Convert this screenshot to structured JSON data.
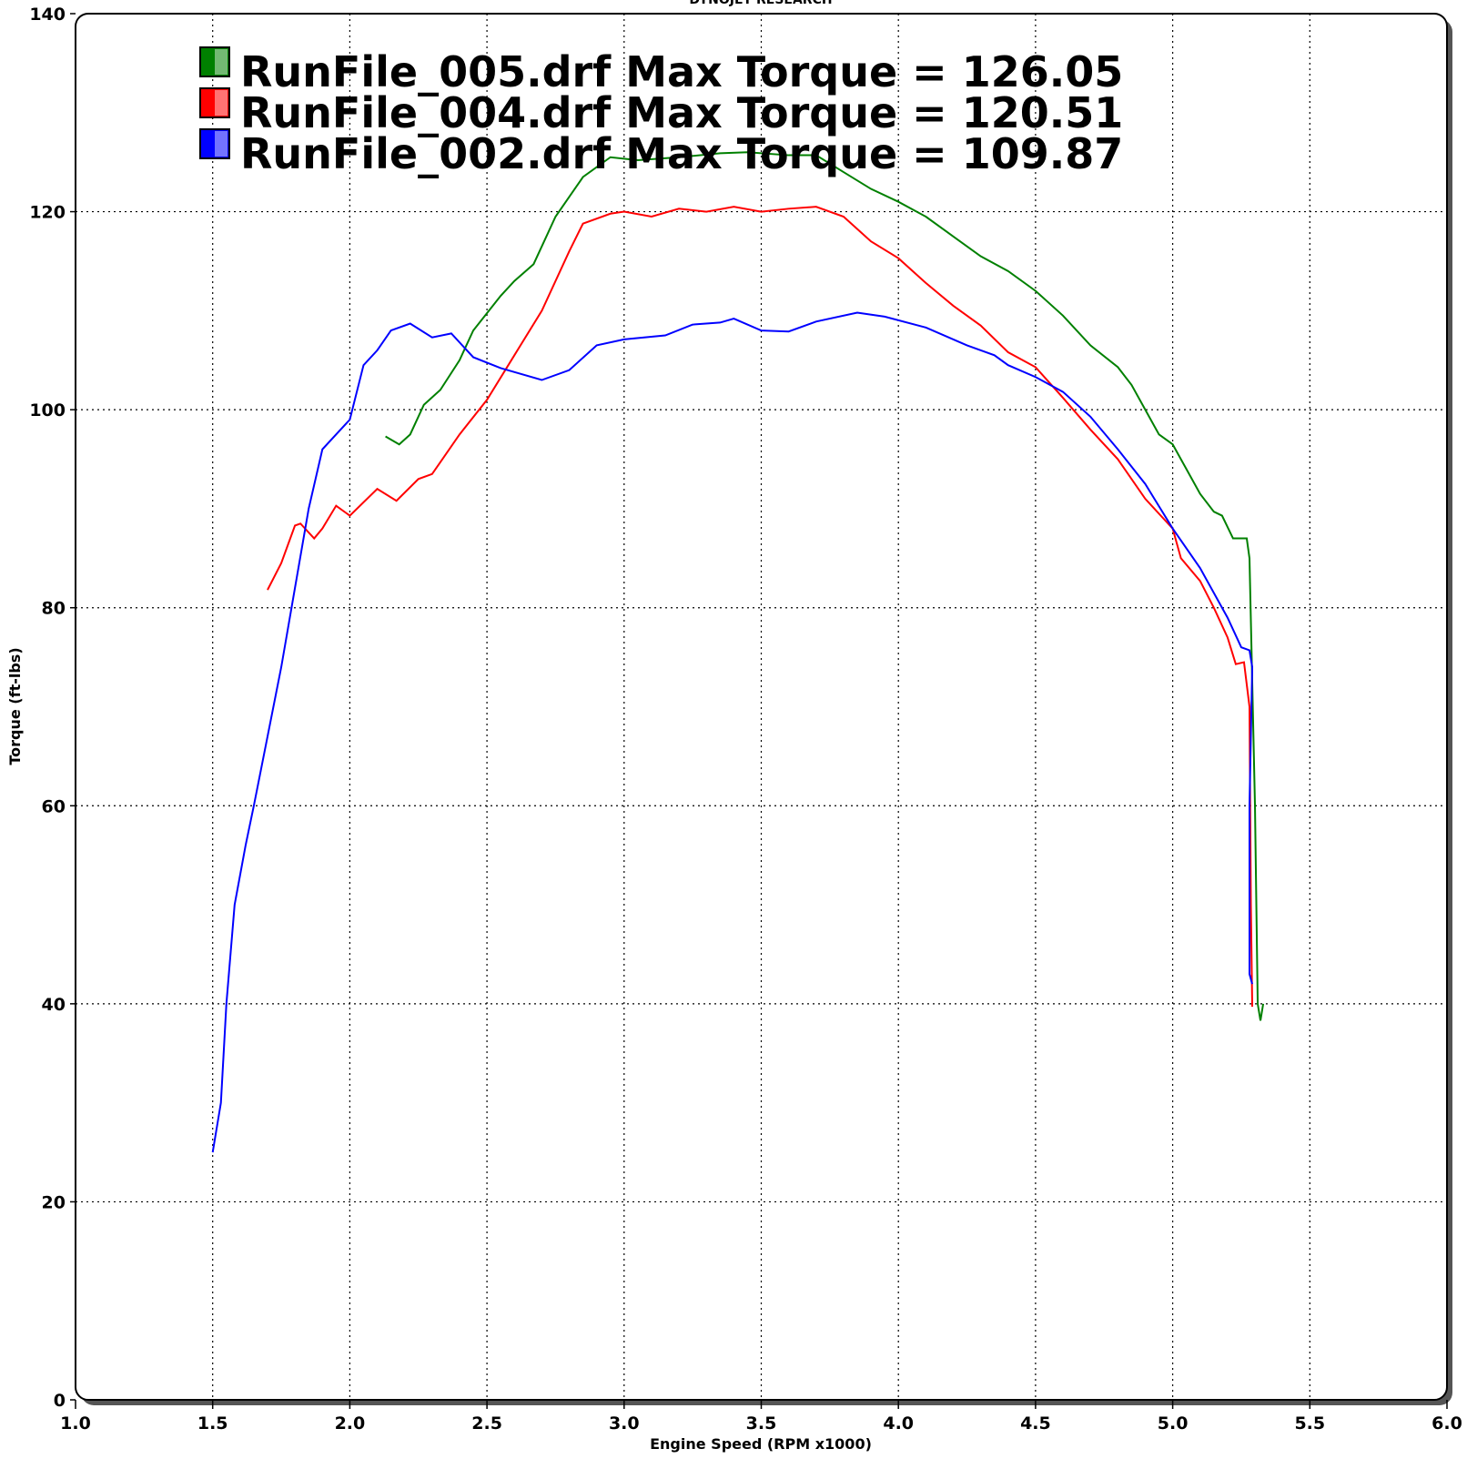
{
  "chart_data": {
    "type": "line",
    "title": "DYNOJET RESEARCH",
    "x_label": "Engine Speed (RPM x1000)",
    "y_label": "Torque (ft-lbs)",
    "xlim": [
      1,
      6
    ],
    "ylim": [
      0,
      140
    ],
    "xticks": [
      {
        "value": 1,
        "label": "1.0"
      },
      1.5,
      {
        "value": 2,
        "label": "2.0"
      },
      2.5,
      {
        "value": 3,
        "label": "3.0"
      },
      3.5,
      {
        "value": 4,
        "label": "4.0"
      },
      4.5,
      {
        "value": 5,
        "label": "5.0"
      },
      5.5,
      {
        "value": 6,
        "label": "6.0"
      }
    ],
    "yticks": [
      0,
      20,
      40,
      60,
      80,
      100,
      120,
      140
    ],
    "grid": true,
    "legend": "top-left",
    "series": [
      {
        "name": "RunFile_005.drf Max Torque = 126.05",
        "color": "#008000",
        "x": [
          2.13,
          2.18,
          2.22,
          2.27,
          2.33,
          2.4,
          2.45,
          2.55,
          2.6,
          2.67,
          2.75,
          2.85,
          2.95,
          3.05,
          3.2,
          3.35,
          3.45,
          3.6,
          3.7,
          3.8,
          3.9,
          4.0,
          4.1,
          4.2,
          4.3,
          4.4,
          4.5,
          4.6,
          4.7,
          4.8,
          4.85,
          4.9,
          4.95,
          5.0,
          5.05,
          5.1,
          5.15,
          5.18,
          5.22,
          5.25,
          5.27,
          5.28,
          5.3,
          5.31,
          5.32,
          5.33
        ],
        "values": [
          97.3,
          96.5,
          97.5,
          100.5,
          102,
          105,
          108,
          111.5,
          113,
          114.7,
          119.5,
          123.5,
          125.5,
          125.2,
          125.5,
          125.9,
          126,
          125.7,
          125.7,
          124,
          122.3,
          121,
          119.5,
          117.5,
          115.5,
          114,
          112,
          109.5,
          106.5,
          104.3,
          102.5,
          100,
          97.5,
          96.5,
          94,
          91.5,
          89.7,
          89.3,
          87,
          87,
          87,
          85,
          60,
          40,
          38.3,
          40
        ]
      },
      {
        "name": "RunFile_004.drf Max Torque = 120.51",
        "color": "#ff0000",
        "x": [
          1.7,
          1.75,
          1.8,
          1.82,
          1.87,
          1.9,
          1.95,
          2.0,
          2.1,
          2.17,
          2.25,
          2.3,
          2.4,
          2.5,
          2.6,
          2.7,
          2.8,
          2.85,
          2.95,
          3.0,
          3.1,
          3.2,
          3.3,
          3.4,
          3.5,
          3.6,
          3.7,
          3.8,
          3.9,
          4.0,
          4.1,
          4.2,
          4.3,
          4.4,
          4.5,
          4.6,
          4.7,
          4.8,
          4.9,
          5.0,
          5.03,
          5.1,
          5.15,
          5.2,
          5.23,
          5.26,
          5.28,
          5.285,
          5.29
        ],
        "values": [
          81.8,
          84.5,
          88.3,
          88.5,
          87,
          88,
          90.3,
          89.3,
          92,
          90.8,
          93,
          93.5,
          97.5,
          101,
          105.5,
          110,
          116,
          118.8,
          119.8,
          120,
          119.5,
          120.3,
          120,
          120.5,
          120,
          120.3,
          120.5,
          119.5,
          117,
          115.3,
          112.8,
          110.5,
          108.5,
          105.8,
          104.3,
          101.2,
          98,
          95,
          91,
          88,
          85,
          82.7,
          80,
          77,
          74.3,
          74.5,
          70,
          50,
          39.7
        ]
      },
      {
        "name": "RunFile_002.drf Max Torque = 109.87",
        "color": "#0000ff",
        "x": [
          1.5,
          1.53,
          1.55,
          1.58,
          1.62,
          1.65,
          1.7,
          1.75,
          1.8,
          1.85,
          1.9,
          1.95,
          2.0,
          2.05,
          2.1,
          2.15,
          2.22,
          2.3,
          2.37,
          2.45,
          2.55,
          2.7,
          2.8,
          2.9,
          3.0,
          3.15,
          3.25,
          3.35,
          3.4,
          3.5,
          3.6,
          3.7,
          3.85,
          3.95,
          4.1,
          4.25,
          4.35,
          4.4,
          4.5,
          4.6,
          4.7,
          4.8,
          4.9,
          5.0,
          5.1,
          5.2,
          5.25,
          5.28,
          5.29,
          5.28,
          5.28,
          5.29
        ],
        "values": [
          25,
          30,
          40,
          50,
          56,
          60,
          67,
          74,
          82,
          90,
          96,
          97.5,
          99,
          104.5,
          106,
          108,
          108.7,
          107.3,
          107.7,
          105.3,
          104.2,
          103,
          104,
          106.5,
          107.1,
          107.5,
          108.6,
          108.8,
          109.2,
          108,
          107.9,
          108.9,
          109.8,
          109.4,
          108.3,
          106.5,
          105.5,
          104.5,
          103.3,
          101.8,
          99.3,
          96,
          92.5,
          88,
          84,
          79,
          76,
          75.7,
          74,
          60,
          43,
          42
        ]
      }
    ]
  }
}
